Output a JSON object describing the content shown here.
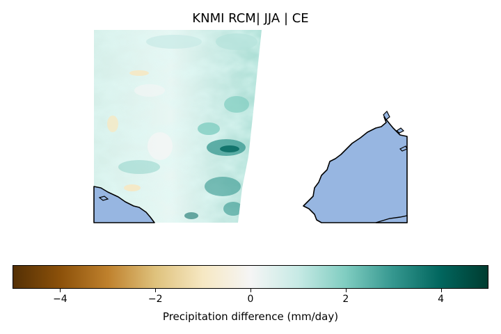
{
  "title": "KNMI RCM| JJA | CE",
  "colorbar": {
    "label": "Precipitation difference (mm/day)",
    "min": -5,
    "max": 5,
    "ticks": [
      -4,
      -2,
      0,
      2,
      4
    ],
    "tick_labels": [
      "−4",
      "−2",
      "0",
      "2",
      "4"
    ],
    "colormap": "BrBG",
    "colors": [
      "#543005",
      "#8c510a",
      "#bf812d",
      "#dfc27d",
      "#f6e8c3",
      "#f5f5f5",
      "#c7eae5",
      "#80cdc1",
      "#35978f",
      "#01665e",
      "#003c30"
    ]
  },
  "map": {
    "land_color": "#97b6e1",
    "coastline_color": "#000000"
  }
}
